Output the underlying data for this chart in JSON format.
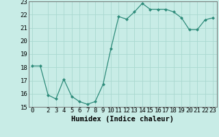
{
  "x": [
    0,
    1,
    2,
    3,
    4,
    5,
    6,
    7,
    8,
    9,
    10,
    11,
    12,
    13,
    14,
    15,
    16,
    17,
    18,
    19,
    20,
    21,
    22,
    23
  ],
  "y": [
    18.1,
    18.1,
    15.9,
    15.6,
    17.1,
    15.8,
    15.4,
    15.2,
    15.4,
    16.7,
    19.4,
    21.85,
    21.65,
    22.2,
    22.85,
    22.4,
    22.4,
    22.4,
    22.2,
    21.75,
    20.85,
    20.85,
    21.6,
    21.75
  ],
  "line_color": "#2e8b7a",
  "marker": "D",
  "marker_size": 2.0,
  "bg_color": "#c8ece6",
  "grid_color": "#aad8d0",
  "xlabel": "Humidex (Indice chaleur)",
  "xlim": [
    -0.5,
    23.5
  ],
  "ylim": [
    15,
    23
  ],
  "yticks": [
    15,
    16,
    17,
    18,
    19,
    20,
    21,
    22,
    23
  ],
  "xticks": [
    0,
    2,
    3,
    4,
    5,
    6,
    7,
    8,
    9,
    10,
    11,
    12,
    13,
    14,
    15,
    16,
    17,
    18,
    19,
    20,
    21,
    22,
    23
  ],
  "xlabel_fontsize": 7.5,
  "tick_fontsize": 6.5
}
